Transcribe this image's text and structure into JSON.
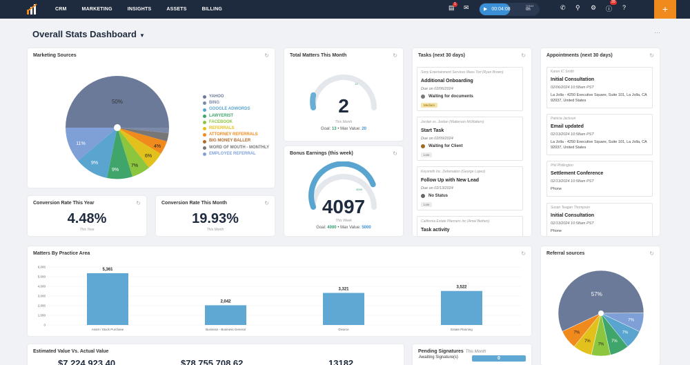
{
  "nav": {
    "items": [
      "CRM",
      "MARKETING",
      "INSIGHTS",
      "ASSETS",
      "BILLING"
    ]
  },
  "topbar": {
    "timer": "00:04:08",
    "timer_today_label": "TODAY",
    "timer_today_value": "0h",
    "mail_badge": "1",
    "notif_badge": "20",
    "plus": "+"
  },
  "page": {
    "title": "Overall Stats Dashboard"
  },
  "marketing": {
    "title": "Marketing Sources",
    "legend": [
      {
        "label": "YAHOO",
        "color": "#6b7a99"
      },
      {
        "label": "BING",
        "color": "#7a8aa8"
      },
      {
        "label": "GOOGLE ADWORDS",
        "color": "#5aa5d0"
      },
      {
        "label": "LAWYERIST",
        "color": "#3fa56a"
      },
      {
        "label": "FACEBOOK",
        "color": "#8cc63f"
      },
      {
        "label": "REFERRALS",
        "color": "#e3c11d"
      },
      {
        "label": "ATTORNEY REFERRALS",
        "color": "#f08a1d"
      },
      {
        "label": "BIG MONEY BALLER",
        "color": "#b06a2a"
      },
      {
        "label": "WORD OF MOUTH - MONTHLY",
        "color": "#777777"
      },
      {
        "label": "EMPLOYEE REFERRAL",
        "color": "#7fa0d6"
      }
    ],
    "slices": [
      "50%",
      "11%",
      "9%",
      "9%",
      "7%",
      "6%",
      "4%"
    ]
  },
  "matters_month": {
    "title": "Total Matters This Month",
    "value": "2",
    "caption": "This Month",
    "goal_label": "Goal:",
    "goal": "13",
    "max_label": "Max Value:",
    "max": "20",
    "gauge_tick": "13",
    "fraction": 0.1
  },
  "bonus": {
    "title": "Bonus Earnings (this week)",
    "value": "4097",
    "caption": "This Week",
    "goal_label": "Goal:",
    "goal": "4000",
    "max_label": "Max Value:",
    "max": "5000",
    "gauge_tick": "4000",
    "fraction": 0.82
  },
  "conv_year": {
    "title": "Conversion Rate This Year",
    "value": "4.48%",
    "caption": "This Year"
  },
  "conv_month": {
    "title": "Conversion Rate This Month",
    "value": "19.93%",
    "caption": "This Month"
  },
  "tasks": {
    "title": "Tasks (next 30 days)",
    "items": [
      {
        "case": "Sony Entertainment Services Mass Tort (Ryan Brown)",
        "title": "Additional Onboarding",
        "due": "Due on 02/06/2024",
        "status": "Waiting for documents",
        "status_color": "#777777",
        "priority": "Medium",
        "pri_bg": "#f6e3a8",
        "pri_fg": "#8a6a10"
      },
      {
        "case": "Jordan vs. Jordan (Matterson McMatters)",
        "title": "Start Task",
        "due": "Due on 02/09/2024",
        "status": "Waiting for Client",
        "status_color": "#9a6a2a",
        "priority": "Low",
        "pri_bg": "#ececec",
        "pri_fg": "#777777"
      },
      {
        "case": "Keysmith Inc. Defamation (George Lopez)",
        "title": "Follow Up with New Lead",
        "due": "Due on 02/13/2024",
        "status": "No Status",
        "status_color": "#666666",
        "priority": "Low",
        "pri_bg": "#ececec",
        "pri_fg": "#777777"
      },
      {
        "case": "California Estate Planners Inc (Amel Bethen)",
        "title": "Task activity",
        "due": "",
        "status": "",
        "status_color": "#ffffff",
        "priority": "",
        "pri_bg": "#ffffff",
        "pri_fg": "#ffffff"
      }
    ]
  },
  "appointments": {
    "title": "Appointments (next 30 days)",
    "items": [
      {
        "who": "Karen IC Smith",
        "title": "Initial Consultation",
        "date": "02/06/2024 10:58am PST",
        "loc": "La Jolla - 4250 Executive Square, Suite 101, La Jolla, CA 92037, United States"
      },
      {
        "who": "Patricia Jackson",
        "title": "Email updated",
        "date": "02/13/2024 10:58am PST",
        "loc": "La Jolla - 4250 Executive Square, Suite 101, La Jolla, CA 92037, United States"
      },
      {
        "who": "Phil Phillington",
        "title": "Settlement Conference",
        "date": "02/13/2024 10:58am PST",
        "loc": "Phone"
      },
      {
        "who": "Susan Teagan Thompson",
        "title": "Initial Consultation",
        "date": "02/13/2024 10:58am PST",
        "loc": "Phone"
      }
    ]
  },
  "chart_data": [
    {
      "type": "bar",
      "title": "Matters By Practice Area",
      "categories": [
        "Asset / Stock Purchase",
        "Business - Business General",
        "Divorce",
        "Estate Planning"
      ],
      "values": [
        5361,
        2042,
        3321,
        3522
      ],
      "yticks": [
        "0",
        "1,000",
        "2,000",
        "3,000",
        "4,000",
        "5,000",
        "6,000"
      ],
      "ylim": [
        0,
        6000
      ],
      "color": "#5fa8d3"
    },
    {
      "type": "pie",
      "title": "Referral sources",
      "labels": [
        "57%",
        "7%",
        "7%",
        "7%",
        "7%",
        "7%",
        "7%"
      ],
      "values": [
        57,
        7.2,
        7.2,
        7.2,
        7.2,
        7.2,
        7.2
      ],
      "colors": [
        "#6b7a99",
        "#7fa0d6",
        "#5aa5d0",
        "#3fa56a",
        "#8cc63f",
        "#e3c11d",
        "#f08a1d"
      ]
    }
  ],
  "estimated": {
    "title": "Estimated Value Vs. Actual Value",
    "values": [
      "$7,224,923.40",
      "$78,755,708.62",
      "13182"
    ]
  },
  "pending": {
    "title": "Pending Signatures",
    "sub": "This Month",
    "row_label": "Awaiting Signature(s)",
    "row_value": "0"
  }
}
